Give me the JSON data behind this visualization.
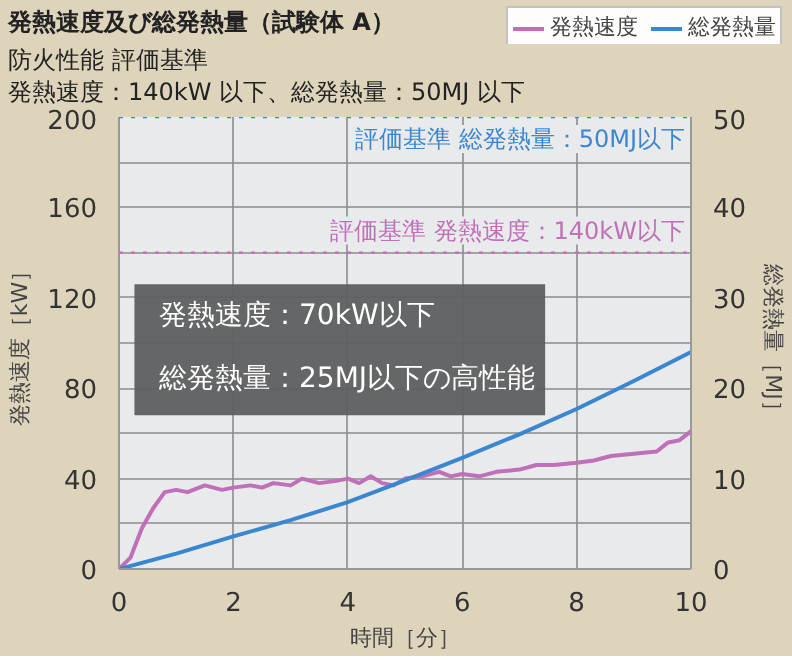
{
  "chart_data": {
    "type": "line",
    "title": "発熱速度及び総発熱量（試験体 A）",
    "subtitle": "防火性能 評価基準",
    "xlabel": "時間［分］",
    "ylabel": "発熱速度［kW］",
    "y2label": "総発熱量［MJ］",
    "xlim": [
      0,
      10
    ],
    "xticks": [
      0,
      2,
      4,
      6,
      8,
      10
    ],
    "ylim": [
      0,
      200
    ],
    "yticks": [
      0,
      {
        "value": 20,
        "label": null
      },
      40,
      {
        "value": 60,
        "label": null
      },
      80,
      {
        "value": 100,
        "label": null
      },
      120,
      {
        "value": 140,
        "label": null
      },
      160,
      {
        "value": 180,
        "label": null
      },
      200
    ],
    "y2lim": [
      0,
      50
    ],
    "y2ticks": [
      0,
      10,
      20,
      30,
      40,
      50
    ],
    "grid": true,
    "legend": "top right",
    "series": [
      {
        "name": "発熱速度",
        "color": "#c070b8",
        "x": [
          0,
          0.2,
          0.4,
          0.6,
          0.8,
          1.0,
          1.2,
          1.5,
          1.8,
          2.0,
          2.3,
          2.5,
          2.7,
          3.0,
          3.2,
          3.5,
          3.8,
          4.0,
          4.2,
          4.4,
          4.6,
          4.8,
          5.0,
          5.3,
          5.6,
          5.8,
          6.0,
          6.3,
          6.6,
          7.0,
          7.3,
          7.6,
          8.0,
          8.3,
          8.6,
          9.0,
          9.4,
          9.6,
          9.8,
          10.0
        ],
        "values": [
          0,
          5,
          18,
          27,
          34,
          35,
          34,
          37,
          35,
          36,
          37,
          36,
          38,
          37,
          40,
          38,
          39,
          40,
          38,
          41,
          38,
          37,
          40,
          41,
          43,
          41,
          42,
          41,
          43,
          44,
          46,
          46,
          47,
          48,
          50,
          51,
          52,
          56,
          57,
          61
        ]
      },
      {
        "name": "総発熱量",
        "color": "#3a87d0",
        "axis": "y2",
        "x": [
          0,
          1,
          2,
          3,
          4,
          5,
          6,
          7,
          8,
          9,
          10
        ],
        "values": [
          0,
          1.7,
          3.6,
          5.4,
          7.4,
          9.8,
          12.3,
          14.9,
          17.7,
          20.8,
          24
        ]
      }
    ],
    "ref_lines": [
      {
        "axis": "y2",
        "value": 50,
        "label": "評価基準 総発熱量：50MJ以下",
        "color": "#3a87d0",
        "line_style": "dotted"
      },
      {
        "axis": "y",
        "value": 140,
        "label": "評価基準 発熱速度：140kW以下",
        "color": "#c070b8",
        "line_style": "dotted"
      }
    ],
    "annotations": [
      "発熱速度：140kW 以下、総発熱量：50MJ 以下",
      "発熱速度：70kW以下",
      "総発熱量：25MJ以下の高性能"
    ]
  }
}
